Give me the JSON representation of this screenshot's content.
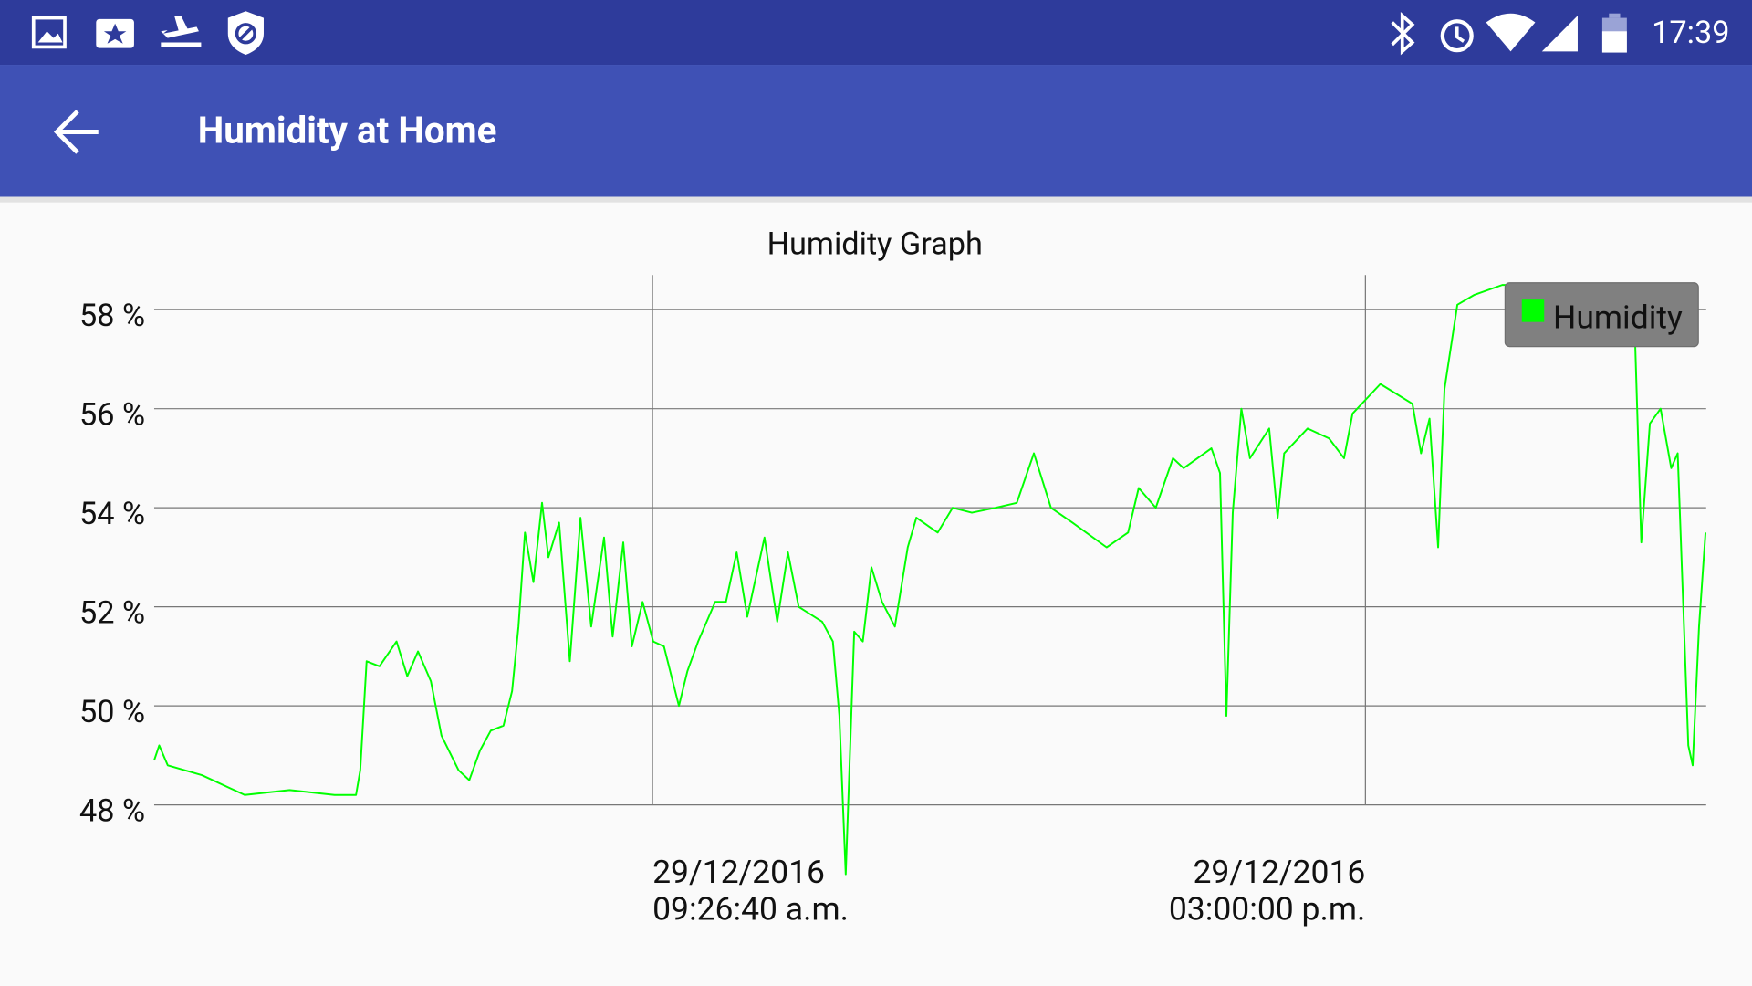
{
  "status_bar": {
    "time": "17:39"
  },
  "app_bar": {
    "title": "Humidity at Home"
  },
  "chart_data": {
    "type": "line",
    "title": "Humidity Graph",
    "x": [
      "2016-12-29T05:33:40",
      "2016-12-29T05:36:00",
      "2016-12-29T05:40:00",
      "2016-12-29T05:56:00",
      "2016-12-29T06:16:00",
      "2016-12-29T06:37:00",
      "2016-12-29T06:58:00",
      "2016-12-29T07:08:00",
      "2016-12-29T07:10:00",
      "2016-12-29T07:13:00",
      "2016-12-29T07:19:00",
      "2016-12-29T07:27:00",
      "2016-12-29T07:32:00",
      "2016-12-29T07:37:00",
      "2016-12-29T07:43:00",
      "2016-12-29T07:48:00",
      "2016-12-29T07:56:00",
      "2016-12-29T08:01:00",
      "2016-12-29T08:06:00",
      "2016-12-29T08:11:00",
      "2016-12-29T08:17:00",
      "2016-12-29T08:21:00",
      "2016-12-29T08:24:00",
      "2016-12-29T08:27:00",
      "2016-12-29T08:31:00",
      "2016-12-29T08:35:00",
      "2016-12-29T08:38:00",
      "2016-12-29T08:43:00",
      "2016-12-29T08:48:00",
      "2016-12-29T08:53:00",
      "2016-12-29T08:58:00",
      "2016-12-29T09:04:00",
      "2016-12-29T09:08:00",
      "2016-12-29T09:13:00",
      "2016-12-29T09:17:00",
      "2016-12-29T09:22:00",
      "2016-12-29T09:27:00",
      "2016-12-29T09:32:00",
      "2016-12-29T09:39:00",
      "2016-12-29T09:43:00",
      "2016-12-29T09:48:00",
      "2016-12-29T09:56:00",
      "2016-12-29T10:01:00",
      "2016-12-29T10:06:00",
      "2016-12-29T10:11:00",
      "2016-12-29T10:19:00",
      "2016-12-29T10:25:00",
      "2016-12-29T10:30:00",
      "2016-12-29T10:35:00",
      "2016-12-29T10:46:00",
      "2016-12-29T10:51:00",
      "2016-12-29T10:54:00",
      "2016-12-29T10:57:00",
      "2016-12-29T11:01:00",
      "2016-12-29T11:05:00",
      "2016-12-29T11:09:00",
      "2016-12-29T11:14:00",
      "2016-12-29T11:20:00",
      "2016-12-29T11:26:00",
      "2016-12-29T11:30:00",
      "2016-12-29T11:40:00",
      "2016-12-29T11:47:00",
      "2016-12-29T11:56:00",
      "2016-12-29T12:07:00",
      "2016-12-29T12:17:00",
      "2016-12-29T12:25:00",
      "2016-12-29T12:33:00",
      "2016-12-29T12:43:00",
      "2016-12-29T12:59:00",
      "2016-12-29T13:09:00",
      "2016-12-29T13:14:00",
      "2016-12-29T13:22:00",
      "2016-12-29T13:30:00",
      "2016-12-29T13:35:00",
      "2016-12-29T13:48:00",
      "2016-12-29T13:52:00",
      "2016-12-29T13:55:00",
      "2016-12-29T13:58:00",
      "2016-12-29T14:02:00",
      "2016-12-29T14:06:00",
      "2016-12-29T14:15:00",
      "2016-12-29T14:19:00",
      "2016-12-29T14:22:00",
      "2016-12-29T14:33:00",
      "2016-12-29T14:43:00",
      "2016-12-29T14:50:00",
      "2016-12-29T14:54:00",
      "2016-12-29T15:07:00",
      "2016-12-29T15:22:00",
      "2016-12-29T15:26:00",
      "2016-12-29T15:30:00",
      "2016-12-29T15:34:00",
      "2016-12-29T15:37:00",
      "2016-12-29T15:43:00",
      "2016-12-29T15:51:00",
      "2016-12-29T16:04:00",
      "2016-12-29T16:23:00",
      "2016-12-29T17:04:00",
      "2016-12-29T17:06:00",
      "2016-12-29T17:09:00",
      "2016-12-29T17:13:00",
      "2016-12-29T17:18:00",
      "2016-12-29T17:23:00",
      "2016-12-29T17:26:00",
      "2016-12-29T17:31:00",
      "2016-12-29T17:33:00",
      "2016-12-29T17:36:00",
      "2016-12-29T17:39:00"
    ],
    "series": [
      {
        "name": "Humidity",
        "color": "#00ff00",
        "values": [
          48.9,
          49.2,
          48.8,
          48.6,
          48.2,
          48.3,
          48.2,
          48.2,
          48.7,
          50.9,
          50.8,
          51.3,
          50.6,
          51.1,
          50.5,
          49.4,
          48.7,
          48.5,
          49.1,
          49.5,
          49.6,
          50.3,
          51.6,
          53.5,
          52.5,
          54.1,
          53.0,
          53.7,
          50.9,
          53.8,
          51.6,
          53.4,
          51.4,
          53.3,
          51.2,
          52.1,
          51.3,
          51.2,
          50.0,
          50.7,
          51.3,
          52.1,
          52.1,
          53.1,
          51.8,
          53.4,
          51.7,
          53.1,
          52.0,
          51.7,
          51.3,
          49.8,
          46.6,
          51.5,
          51.3,
          52.8,
          52.1,
          51.6,
          53.2,
          53.8,
          53.5,
          54.0,
          53.9,
          54.0,
          54.1,
          55.1,
          54.0,
          53.7,
          53.2,
          53.5,
          54.4,
          54.0,
          55.0,
          54.8,
          55.2,
          54.7,
          49.8,
          53.9,
          56.0,
          55.0,
          55.6,
          53.8,
          55.1,
          55.6,
          55.4,
          55.0,
          55.9,
          56.5,
          56.1,
          55.1,
          55.8,
          53.2,
          56.4,
          58.1,
          58.3,
          58.5,
          58.5,
          57.7,
          57.5,
          53.3,
          55.7,
          56.0,
          54.8,
          55.1,
          49.2,
          48.8,
          51.6,
          53.5
        ]
      }
    ],
    "xlim": [
      "2016-12-29T05:33:40",
      "2016-12-29T17:39:20"
    ],
    "xticks": [
      {
        "value": "2016-12-29T09:26:40",
        "label": [
          "29/12/2016",
          "09:26:40 a.m."
        ]
      },
      {
        "value": "2016-12-29T15:00:00",
        "label": [
          "29/12/2016",
          "03:00:00 p.m."
        ]
      }
    ],
    "ylim": [
      48,
      58.7
    ],
    "yticks": [
      {
        "value": 48,
        "label": "48 %"
      },
      {
        "value": 50,
        "label": "50 %"
      },
      {
        "value": 52,
        "label": "52 %"
      },
      {
        "value": 54,
        "label": "54 %"
      },
      {
        "value": 56,
        "label": "56 %"
      },
      {
        "value": 58,
        "label": "58 %"
      }
    ],
    "grid": true,
    "legend": "top-right"
  }
}
